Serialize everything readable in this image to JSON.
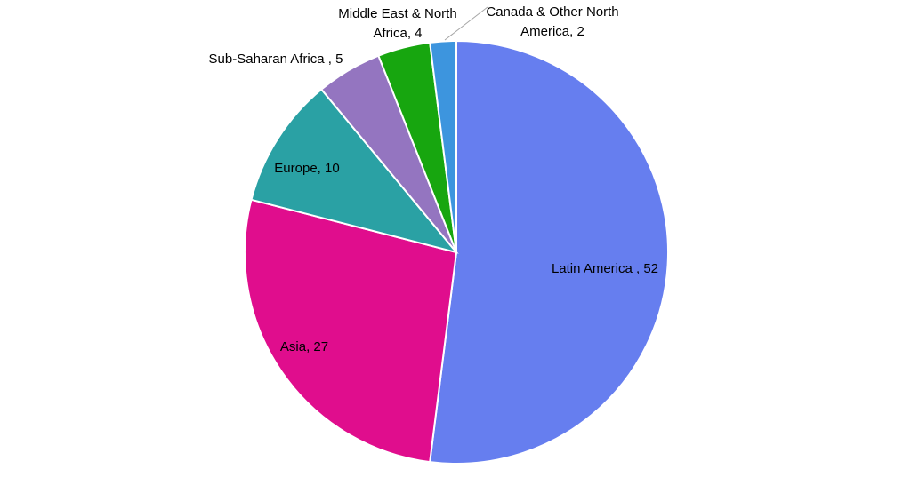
{
  "chart_data": {
    "type": "pie",
    "title": "",
    "slices": [
      {
        "label": "Latin America",
        "value": 52,
        "display": "Latin America , 52",
        "color": "#667eef"
      },
      {
        "label": "Asia",
        "value": 27,
        "display": "Asia, 27",
        "color": "#e00d8d"
      },
      {
        "label": "Europe",
        "value": 10,
        "display": "Europe, 10",
        "color": "#2aa1a4"
      },
      {
        "label": "Sub-Saharan Africa",
        "value": 5,
        "display": "Sub-Saharan Africa , 5",
        "color": "#9475c0"
      },
      {
        "label": "Middle East & North Africa",
        "value": 4,
        "display_lines": [
          "Middle East & North",
          "Africa, 4"
        ],
        "color": "#17a60f"
      },
      {
        "label": "Canada & Other North America",
        "value": 2,
        "display_lines": [
          "Canada & Other North",
          "America, 2"
        ],
        "color": "#3d95de"
      }
    ],
    "legend": "none",
    "start_angle": "top",
    "direction": "clockwise"
  }
}
